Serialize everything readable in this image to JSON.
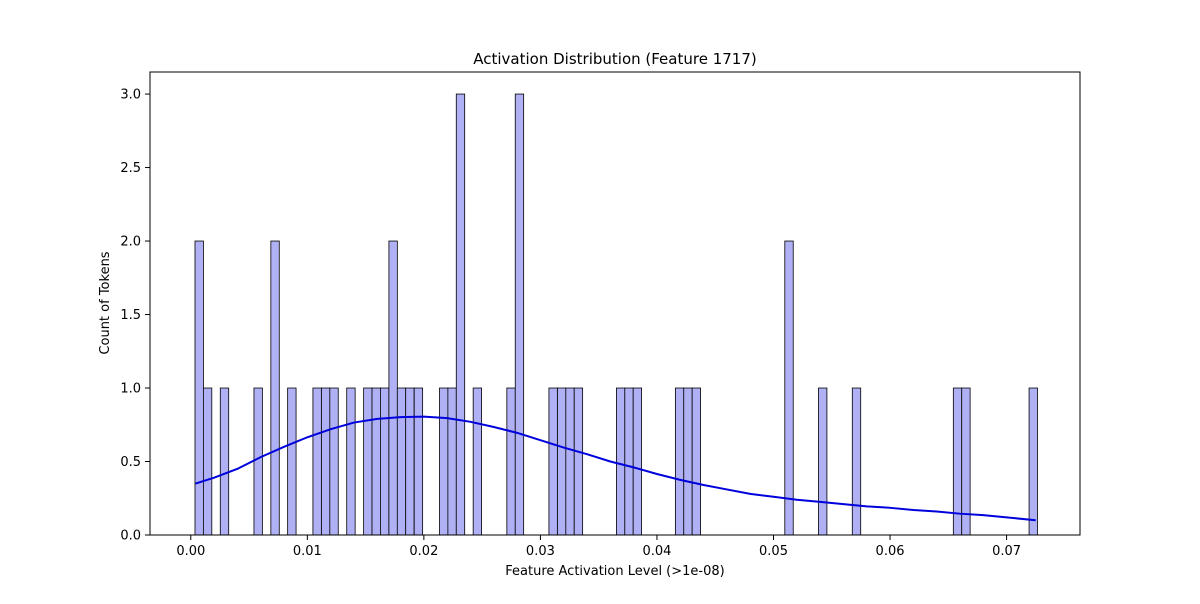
{
  "chart_data": {
    "type": "bar",
    "title": "Activation Distribution (Feature 1717)",
    "xlabel": "Feature Activation Level (>1e-08)",
    "ylabel": "Count of Tokens",
    "xlim": [
      -0.0035,
      0.0763
    ],
    "ylim": [
      0,
      3.15
    ],
    "x_ticks": [
      0.0,
      0.01,
      0.02,
      0.03,
      0.04,
      0.05,
      0.06,
      0.07
    ],
    "x_tick_labels": [
      "0.00",
      "0.01",
      "0.02",
      "0.03",
      "0.04",
      "0.05",
      "0.06",
      "0.07"
    ],
    "y_ticks": [
      0.0,
      0.5,
      1.0,
      1.5,
      2.0,
      2.5,
      3.0
    ],
    "y_tick_labels": [
      "0.0",
      "0.5",
      "1.0",
      "1.5",
      "2.0",
      "2.5",
      "3.0"
    ],
    "grid": false,
    "bin_width": 0.000723,
    "bins": [
      {
        "x": 0.00036,
        "count": 2
      },
      {
        "x": 0.00108,
        "count": 1
      },
      {
        "x": 0.00253,
        "count": 1
      },
      {
        "x": 0.00542,
        "count": 1
      },
      {
        "x": 0.00687,
        "count": 2
      },
      {
        "x": 0.00831,
        "count": 1
      },
      {
        "x": 0.01048,
        "count": 1
      },
      {
        "x": 0.01121,
        "count": 1
      },
      {
        "x": 0.01193,
        "count": 1
      },
      {
        "x": 0.01338,
        "count": 1
      },
      {
        "x": 0.01483,
        "count": 1
      },
      {
        "x": 0.01555,
        "count": 1
      },
      {
        "x": 0.01627,
        "count": 1
      },
      {
        "x": 0.017,
        "count": 2
      },
      {
        "x": 0.01772,
        "count": 1
      },
      {
        "x": 0.01844,
        "count": 1
      },
      {
        "x": 0.01917,
        "count": 1
      },
      {
        "x": 0.02134,
        "count": 1
      },
      {
        "x": 0.02206,
        "count": 1
      },
      {
        "x": 0.02278,
        "count": 3
      },
      {
        "x": 0.02423,
        "count": 1
      },
      {
        "x": 0.02712,
        "count": 1
      },
      {
        "x": 0.02784,
        "count": 3
      },
      {
        "x": 0.03073,
        "count": 1
      },
      {
        "x": 0.03146,
        "count": 1
      },
      {
        "x": 0.03218,
        "count": 1
      },
      {
        "x": 0.0329,
        "count": 1
      },
      {
        "x": 0.03652,
        "count": 1
      },
      {
        "x": 0.03724,
        "count": 1
      },
      {
        "x": 0.03796,
        "count": 1
      },
      {
        "x": 0.04158,
        "count": 1
      },
      {
        "x": 0.0423,
        "count": 1
      },
      {
        "x": 0.04302,
        "count": 1
      },
      {
        "x": 0.05097,
        "count": 2
      },
      {
        "x": 0.05386,
        "count": 1
      },
      {
        "x": 0.05676,
        "count": 1
      },
      {
        "x": 0.06543,
        "count": 1
      },
      {
        "x": 0.06615,
        "count": 1
      },
      {
        "x": 0.07193,
        "count": 1
      }
    ],
    "bar_fill": "#b0b0f4",
    "bar_edge": "#000000",
    "kde": {
      "color": "#0000dd",
      "points": [
        [
          0.0004,
          0.35
        ],
        [
          0.002,
          0.39
        ],
        [
          0.004,
          0.45
        ],
        [
          0.006,
          0.53
        ],
        [
          0.008,
          0.6
        ],
        [
          0.01,
          0.665
        ],
        [
          0.012,
          0.72
        ],
        [
          0.014,
          0.765
        ],
        [
          0.016,
          0.79
        ],
        [
          0.018,
          0.802
        ],
        [
          0.02,
          0.805
        ],
        [
          0.022,
          0.795
        ],
        [
          0.024,
          0.77
        ],
        [
          0.026,
          0.735
        ],
        [
          0.028,
          0.695
        ],
        [
          0.03,
          0.645
        ],
        [
          0.032,
          0.595
        ],
        [
          0.034,
          0.55
        ],
        [
          0.036,
          0.5
        ],
        [
          0.038,
          0.46
        ],
        [
          0.04,
          0.415
        ],
        [
          0.042,
          0.375
        ],
        [
          0.044,
          0.34
        ],
        [
          0.046,
          0.31
        ],
        [
          0.048,
          0.28
        ],
        [
          0.05,
          0.26
        ],
        [
          0.052,
          0.24
        ],
        [
          0.054,
          0.225
        ],
        [
          0.056,
          0.21
        ],
        [
          0.058,
          0.195
        ],
        [
          0.06,
          0.185
        ],
        [
          0.062,
          0.17
        ],
        [
          0.064,
          0.16
        ],
        [
          0.066,
          0.145
        ],
        [
          0.068,
          0.135
        ],
        [
          0.07,
          0.12
        ],
        [
          0.0725,
          0.1
        ]
      ]
    }
  }
}
